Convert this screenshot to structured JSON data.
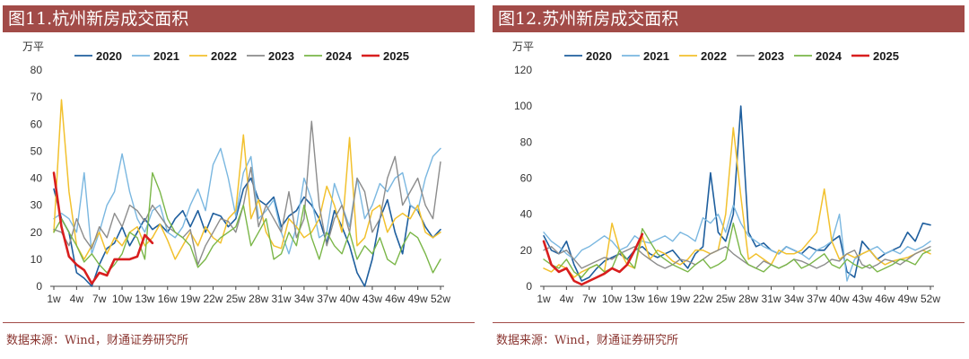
{
  "charts": [
    {
      "title": "图11.杭州新房成交面积",
      "source": "数据来源：Wind，财通证券研究所"
    },
    {
      "title": "图12.苏州新房成交面积",
      "source": "数据来源：Wind，财通证券研究所"
    }
  ],
  "chart_data": [
    {
      "type": "line",
      "title": "图11.杭州新房成交面积",
      "ylabel": "万平",
      "ylim": [
        0,
        80
      ],
      "yticks": [
        0,
        10,
        20,
        30,
        40,
        50,
        60,
        70,
        80
      ],
      "x_ticks": [
        "1w",
        "4w",
        "7w",
        "10w",
        "13w",
        "16w",
        "19w",
        "22w",
        "25w",
        "28w",
        "31w",
        "34w",
        "37w",
        "40w",
        "43w",
        "46w",
        "49w",
        "52w"
      ],
      "x_count": 52,
      "legend_position": "top",
      "series": [
        {
          "name": "2020",
          "color": "#1f5f9e",
          "width": 1.6,
          "values": [
            36,
            25,
            20,
            5,
            3,
            0,
            8,
            14,
            16,
            22,
            15,
            20,
            25,
            21,
            23,
            20,
            25,
            28,
            22,
            28,
            20,
            27,
            26,
            22,
            25,
            36,
            40,
            32,
            30,
            33,
            22,
            26,
            28,
            33,
            30,
            25,
            16,
            28,
            22,
            15,
            5,
            0,
            10,
            25,
            32,
            20,
            12,
            30,
            28,
            22,
            18,
            21
          ]
        },
        {
          "name": "2021",
          "color": "#7ab7e0",
          "width": 1.4,
          "values": [
            25,
            27,
            25,
            20,
            42,
            12,
            20,
            30,
            35,
            49,
            35,
            25,
            20,
            28,
            30,
            20,
            18,
            22,
            30,
            36,
            28,
            45,
            51,
            40,
            26,
            42,
            48,
            25,
            28,
            32,
            20,
            12,
            22,
            40,
            32,
            18,
            20,
            38,
            30,
            22,
            40,
            25,
            30,
            38,
            35,
            40,
            42,
            30,
            28,
            40,
            48,
            51
          ]
        },
        {
          "name": "2022",
          "color": "#f2c12e",
          "width": 1.5,
          "values": [
            20,
            69,
            35,
            15,
            10,
            15,
            20,
            12,
            18,
            15,
            20,
            22,
            15,
            18,
            23,
            17,
            10,
            15,
            20,
            15,
            22,
            18,
            16,
            25,
            28,
            56,
            25,
            32,
            20,
            15,
            14,
            25,
            22,
            18,
            20,
            25,
            37,
            30,
            20,
            55,
            15,
            18,
            28,
            30,
            20,
            25,
            27,
            25,
            30,
            20,
            18,
            20
          ]
        },
        {
          "name": "2023",
          "color": "#8c8c8c",
          "width": 1.4,
          "values": [
            21,
            20,
            15,
            25,
            18,
            14,
            22,
            18,
            27,
            22,
            30,
            28,
            24,
            30,
            26,
            22,
            20,
            18,
            21,
            8,
            15,
            20,
            25,
            24,
            20,
            30,
            44,
            22,
            30,
            25,
            20,
            35,
            18,
            25,
            61,
            30,
            15,
            25,
            30,
            20,
            40,
            35,
            20,
            25,
            40,
            48,
            30,
            35,
            40,
            30,
            25,
            46
          ]
        },
        {
          "name": "2024",
          "color": "#7ab648",
          "width": 1.4,
          "values": [
            20,
            25,
            20,
            15,
            9,
            12,
            8,
            5,
            8,
            12,
            20,
            18,
            10,
            42,
            35,
            25,
            20,
            18,
            15,
            7,
            10,
            15,
            18,
            20,
            22,
            30,
            15,
            20,
            25,
            10,
            12,
            20,
            15,
            30,
            18,
            10,
            20,
            15,
            12,
            20,
            10,
            15,
            12,
            18,
            10,
            8,
            15,
            20,
            18,
            12,
            5,
            10
          ]
        },
        {
          "name": "2025",
          "color": "#d81e1e",
          "width": 2.6,
          "values": [
            42,
            22,
            11,
            8,
            6,
            1,
            5,
            4,
            10,
            10,
            10,
            11,
            19,
            16
          ]
        }
      ]
    },
    {
      "type": "line",
      "title": "图12.苏州新房成交面积",
      "ylabel": "万平",
      "ylim": [
        0,
        120
      ],
      "yticks": [
        0,
        20,
        40,
        60,
        80,
        100,
        120
      ],
      "x_ticks": [
        "1w",
        "4w",
        "7w",
        "10w",
        "13w",
        "16w",
        "19w",
        "22w",
        "25w",
        "28w",
        "31w",
        "34w",
        "37w",
        "40w",
        "43w",
        "46w",
        "49w",
        "52w"
      ],
      "x_count": 52,
      "legend_position": "top",
      "series": [
        {
          "name": "2020",
          "color": "#1f5f9e",
          "width": 1.6,
          "values": [
            28,
            20,
            18,
            25,
            12,
            3,
            5,
            10,
            14,
            16,
            18,
            15,
            20,
            22,
            18,
            16,
            18,
            20,
            15,
            10,
            18,
            22,
            63,
            30,
            25,
            40,
            100,
            30,
            22,
            24,
            20,
            18,
            22,
            20,
            18,
            22,
            20,
            20,
            25,
            28,
            8,
            5,
            25,
            20,
            15,
            18,
            20,
            22,
            30,
            25,
            35,
            34
          ]
        },
        {
          "name": "2021",
          "color": "#7ab7e0",
          "width": 1.4,
          "values": [
            30,
            25,
            22,
            18,
            15,
            20,
            22,
            25,
            28,
            25,
            20,
            22,
            28,
            25,
            24,
            26,
            28,
            25,
            30,
            28,
            25,
            38,
            35,
            40,
            30,
            45,
            35,
            28,
            25,
            22,
            20,
            18,
            22,
            20,
            18,
            15,
            20,
            22,
            25,
            40,
            3,
            15,
            18,
            20,
            22,
            18,
            20,
            18,
            22,
            20,
            22,
            25
          ]
        },
        {
          "name": "2022",
          "color": "#f2c12e",
          "width": 1.5,
          "values": [
            10,
            8,
            12,
            10,
            5,
            8,
            10,
            12,
            8,
            35,
            20,
            12,
            10,
            28,
            15,
            20,
            18,
            14,
            12,
            15,
            20,
            20,
            18,
            20,
            40,
            88,
            50,
            15,
            18,
            15,
            12,
            20,
            18,
            18,
            20,
            25,
            30,
            54,
            25,
            15,
            18,
            16,
            18,
            20,
            15,
            12,
            14,
            15,
            16,
            18,
            20,
            18
          ]
        },
        {
          "name": "2023",
          "color": "#8c8c8c",
          "width": 1.4,
          "values": [
            20,
            22,
            18,
            20,
            15,
            10,
            12,
            14,
            16,
            15,
            18,
            20,
            22,
            18,
            15,
            12,
            10,
            12,
            15,
            14,
            12,
            15,
            18,
            20,
            22,
            18,
            15,
            12,
            10,
            14,
            12,
            10,
            12,
            15,
            14,
            12,
            10,
            12,
            15,
            14,
            18,
            20,
            12,
            10,
            12,
            15,
            14,
            12,
            15,
            18,
            20,
            22
          ]
        },
        {
          "name": "2024",
          "color": "#7ab648",
          "width": 1.4,
          "values": [
            15,
            12,
            10,
            15,
            8,
            5,
            10,
            12,
            8,
            10,
            20,
            15,
            10,
            32,
            25,
            18,
            15,
            12,
            10,
            8,
            12,
            15,
            10,
            12,
            15,
            35,
            18,
            12,
            10,
            8,
            12,
            10,
            12,
            15,
            10,
            12,
            15,
            18,
            12,
            10,
            15,
            12,
            10,
            12,
            8,
            10,
            12,
            15,
            14,
            12,
            18,
            20
          ]
        },
        {
          "name": "2025",
          "color": "#d81e1e",
          "width": 2.6,
          "values": [
            25,
            12,
            8,
            10,
            3,
            1,
            3,
            5,
            7,
            10,
            8,
            12,
            20,
            29
          ]
        }
      ]
    }
  ]
}
